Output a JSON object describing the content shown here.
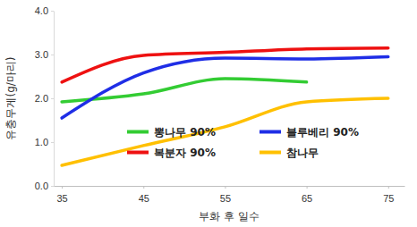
{
  "chart_data": {
    "type": "line",
    "x_label": "부화 후 일수",
    "y_label": "유충무게(g/마리)",
    "x": [
      35,
      45,
      55,
      65,
      75
    ],
    "series": [
      {
        "name": "뽕나무 90%",
        "color": "#33cc33",
        "values": [
          1.92,
          2.1,
          2.45,
          2.37,
          null
        ]
      },
      {
        "name": "블루베리 90%",
        "color": "#1f2ee6",
        "values": [
          1.55,
          2.58,
          2.92,
          2.9,
          2.95
        ]
      },
      {
        "name": "복분자 90%",
        "color": "#ee1111",
        "values": [
          2.37,
          2.98,
          3.05,
          3.13,
          3.15
        ]
      },
      {
        "name": "참나무",
        "color": "#ffc000",
        "values": [
          0.47,
          0.92,
          1.35,
          1.92,
          2.0
        ]
      }
    ],
    "xlim": [
      34,
      77
    ],
    "ylim": [
      0,
      4
    ],
    "xticks": [
      35,
      45,
      55,
      65,
      75
    ],
    "yticks": [
      {
        "value": 0,
        "label": "0.0"
      },
      {
        "value": 1,
        "label": "1.0"
      },
      {
        "value": 2,
        "label": "2.0"
      },
      {
        "value": 3,
        "label": "3.0"
      },
      {
        "value": 4,
        "label": "4.0"
      }
    ],
    "legend": "lower right",
    "grid": false
  }
}
